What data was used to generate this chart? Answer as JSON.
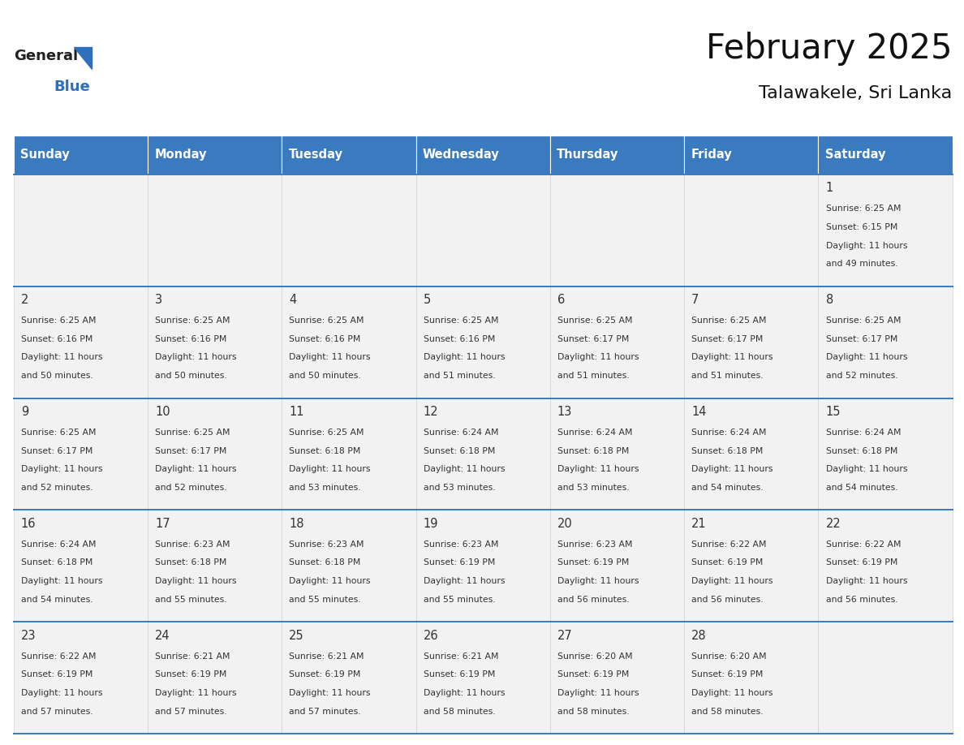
{
  "title": "February 2025",
  "subtitle": "Talawakele, Sri Lanka",
  "header_color": "#3a7abf",
  "header_text_color": "#ffffff",
  "days_of_week": [
    "Sunday",
    "Monday",
    "Tuesday",
    "Wednesday",
    "Thursday",
    "Friday",
    "Saturday"
  ],
  "cell_bg": "#f2f2f2",
  "cell_border_color": "#3a7abf",
  "day_number_color": "#333333",
  "info_text_color": "#333333",
  "calendar_data": [
    [
      null,
      null,
      null,
      null,
      null,
      null,
      {
        "day": 1,
        "sunrise": "6:25 AM",
        "sunset": "6:15 PM",
        "daylight": "11 hours and 49 minutes."
      }
    ],
    [
      {
        "day": 2,
        "sunrise": "6:25 AM",
        "sunset": "6:16 PM",
        "daylight": "11 hours and 50 minutes."
      },
      {
        "day": 3,
        "sunrise": "6:25 AM",
        "sunset": "6:16 PM",
        "daylight": "11 hours and 50 minutes."
      },
      {
        "day": 4,
        "sunrise": "6:25 AM",
        "sunset": "6:16 PM",
        "daylight": "11 hours and 50 minutes."
      },
      {
        "day": 5,
        "sunrise": "6:25 AM",
        "sunset": "6:16 PM",
        "daylight": "11 hours and 51 minutes."
      },
      {
        "day": 6,
        "sunrise": "6:25 AM",
        "sunset": "6:17 PM",
        "daylight": "11 hours and 51 minutes."
      },
      {
        "day": 7,
        "sunrise": "6:25 AM",
        "sunset": "6:17 PM",
        "daylight": "11 hours and 51 minutes."
      },
      {
        "day": 8,
        "sunrise": "6:25 AM",
        "sunset": "6:17 PM",
        "daylight": "11 hours and 52 minutes."
      }
    ],
    [
      {
        "day": 9,
        "sunrise": "6:25 AM",
        "sunset": "6:17 PM",
        "daylight": "11 hours and 52 minutes."
      },
      {
        "day": 10,
        "sunrise": "6:25 AM",
        "sunset": "6:17 PM",
        "daylight": "11 hours and 52 minutes."
      },
      {
        "day": 11,
        "sunrise": "6:25 AM",
        "sunset": "6:18 PM",
        "daylight": "11 hours and 53 minutes."
      },
      {
        "day": 12,
        "sunrise": "6:24 AM",
        "sunset": "6:18 PM",
        "daylight": "11 hours and 53 minutes."
      },
      {
        "day": 13,
        "sunrise": "6:24 AM",
        "sunset": "6:18 PM",
        "daylight": "11 hours and 53 minutes."
      },
      {
        "day": 14,
        "sunrise": "6:24 AM",
        "sunset": "6:18 PM",
        "daylight": "11 hours and 54 minutes."
      },
      {
        "day": 15,
        "sunrise": "6:24 AM",
        "sunset": "6:18 PM",
        "daylight": "11 hours and 54 minutes."
      }
    ],
    [
      {
        "day": 16,
        "sunrise": "6:24 AM",
        "sunset": "6:18 PM",
        "daylight": "11 hours and 54 minutes."
      },
      {
        "day": 17,
        "sunrise": "6:23 AM",
        "sunset": "6:18 PM",
        "daylight": "11 hours and 55 minutes."
      },
      {
        "day": 18,
        "sunrise": "6:23 AM",
        "sunset": "6:18 PM",
        "daylight": "11 hours and 55 minutes."
      },
      {
        "day": 19,
        "sunrise": "6:23 AM",
        "sunset": "6:19 PM",
        "daylight": "11 hours and 55 minutes."
      },
      {
        "day": 20,
        "sunrise": "6:23 AM",
        "sunset": "6:19 PM",
        "daylight": "11 hours and 56 minutes."
      },
      {
        "day": 21,
        "sunrise": "6:22 AM",
        "sunset": "6:19 PM",
        "daylight": "11 hours and 56 minutes."
      },
      {
        "day": 22,
        "sunrise": "6:22 AM",
        "sunset": "6:19 PM",
        "daylight": "11 hours and 56 minutes."
      }
    ],
    [
      {
        "day": 23,
        "sunrise": "6:22 AM",
        "sunset": "6:19 PM",
        "daylight": "11 hours and 57 minutes."
      },
      {
        "day": 24,
        "sunrise": "6:21 AM",
        "sunset": "6:19 PM",
        "daylight": "11 hours and 57 minutes."
      },
      {
        "day": 25,
        "sunrise": "6:21 AM",
        "sunset": "6:19 PM",
        "daylight": "11 hours and 57 minutes."
      },
      {
        "day": 26,
        "sunrise": "6:21 AM",
        "sunset": "6:19 PM",
        "daylight": "11 hours and 58 minutes."
      },
      {
        "day": 27,
        "sunrise": "6:20 AM",
        "sunset": "6:19 PM",
        "daylight": "11 hours and 58 minutes."
      },
      {
        "day": 28,
        "sunrise": "6:20 AM",
        "sunset": "6:19 PM",
        "daylight": "11 hours and 58 minutes."
      },
      null
    ]
  ],
  "figsize": [
    11.88,
    9.18
  ],
  "dpi": 100
}
